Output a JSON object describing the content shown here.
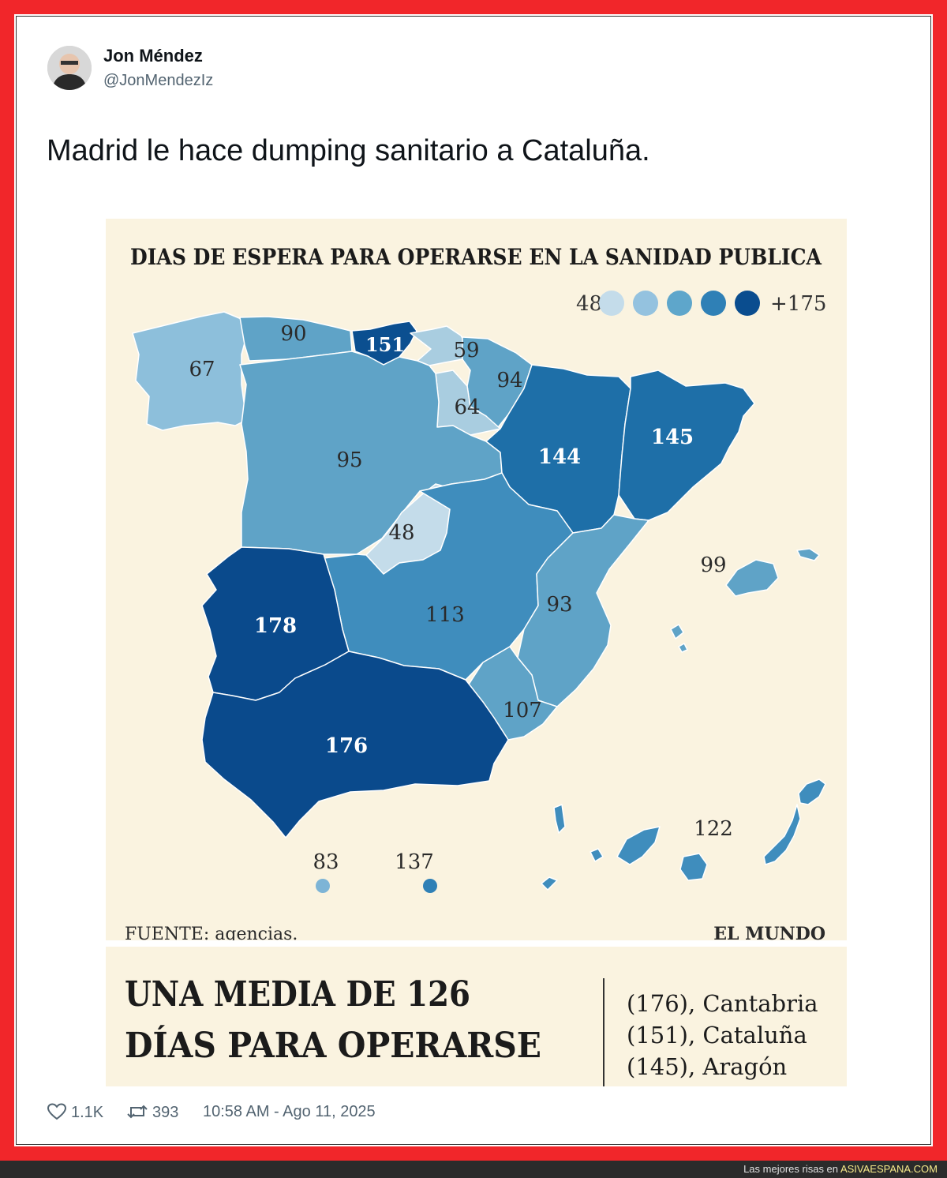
{
  "tweet": {
    "author_name": "Jon Méndez",
    "author_handle": "@JonMendezIz",
    "text": "Madrid le hace dumping sanitario a Cataluña.",
    "likes": "1.1K",
    "retweets": "393",
    "timestamp": "10:58 AM - Ago 11, 2025"
  },
  "infographic": {
    "title": "DIAS DE ESPERA PARA OPERARSE EN LA SANIDAD PUBLICA",
    "legend_min": "48",
    "legend_max": "+175",
    "legend_colors": [
      "#c4dcea",
      "#94c2df",
      "#5ea6cb",
      "#2f80b6",
      "#0a4d8f"
    ],
    "regions": [
      {
        "label": "90",
        "color": "#5fa3c7",
        "text_color": "#2a2a2a"
      },
      {
        "label": "151",
        "color": "#0b4f90",
        "text_color": "#ffffff"
      },
      {
        "label": "59",
        "color": "#a9cde0",
        "text_color": "#2a2a2a"
      },
      {
        "label": "67",
        "color": "#8dbfdb",
        "text_color": "#2a2a2a"
      },
      {
        "label": "94",
        "color": "#5fa3c7",
        "text_color": "#2a2a2a"
      },
      {
        "label": "64",
        "color": "#a9cde0",
        "text_color": "#2a2a2a"
      },
      {
        "label": "144",
        "color": "#1e6fa8",
        "text_color": "#ffffff"
      },
      {
        "label": "145",
        "color": "#1e6fa8",
        "text_color": "#ffffff"
      },
      {
        "label": "95",
        "color": "#5fa3c7",
        "text_color": "#2a2a2a"
      },
      {
        "label": "48",
        "color": "#c4dcea",
        "text_color": "#2a2a2a"
      },
      {
        "label": "113",
        "color": "#3f8dbd",
        "text_color": "#2a2a2a"
      },
      {
        "label": "93",
        "color": "#5fa3c7",
        "text_color": "#2a2a2a"
      },
      {
        "label": "178",
        "color": "#0a4a8c",
        "text_color": "#ffffff"
      },
      {
        "label": "107",
        "color": "#5fa3c7",
        "text_color": "#2a2a2a"
      },
      {
        "label": "176",
        "color": "#0a4a8c",
        "text_color": "#ffffff"
      },
      {
        "label": "99",
        "color": "#5fa3c7",
        "text_color": "#2a2a2a"
      },
      {
        "label": "122",
        "color": "#3f8dbd",
        "text_color": "#2a2a2a"
      },
      {
        "label": "83",
        "color": "#7db4d6",
        "text_color": "#2a2a2a"
      },
      {
        "label": "137",
        "color": "#2f80b6",
        "text_color": "#2a2a2a"
      }
    ],
    "source": "FUENTE: agencias.",
    "brand": "EL MUNDO",
    "headline_line1": "UNA MEDIA DE 126",
    "headline_line2": "DÍAS PARA OPERARSE",
    "ranking": [
      "(176), Cantabria",
      "(151), Cataluña",
      "(145), Aragón"
    ]
  },
  "watermark": {
    "prefix": "Las mejores risas en",
    "site": "ASIVAESPANA.COM"
  }
}
